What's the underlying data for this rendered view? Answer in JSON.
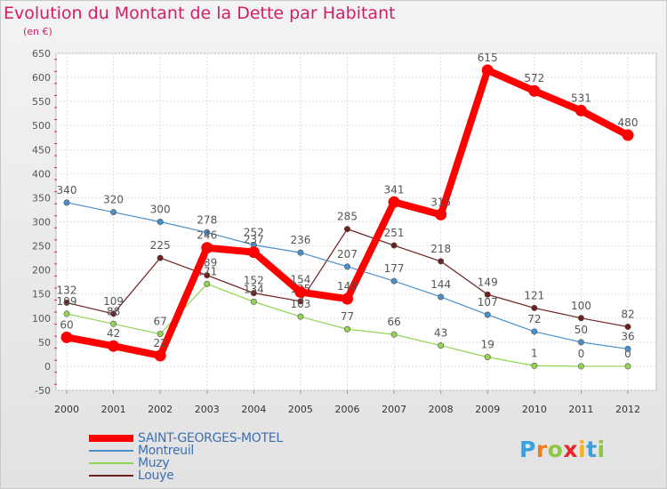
{
  "header": {
    "title": "Evolution du Montant de la Dette par Habitant",
    "unit": "(en €)"
  },
  "brand": {
    "letters": [
      "P",
      "r",
      "o",
      "x",
      "i",
      "t",
      "i"
    ],
    "colors": [
      "#3aa1da",
      "#f07c1c",
      "#8dc63f",
      "#e8262b",
      "#f5b21d",
      "#3aa1da",
      "#8dc63f"
    ]
  },
  "chart_data": {
    "type": "line",
    "x": [
      "2000",
      "2001",
      "2002",
      "2003",
      "2004",
      "2005",
      "2006",
      "2007",
      "2008",
      "2009",
      "2010",
      "2011",
      "2012"
    ],
    "ylim": [
      -50,
      650
    ],
    "yticks": [
      -50,
      0,
      50,
      100,
      150,
      200,
      250,
      300,
      350,
      400,
      450,
      500,
      550,
      600,
      650
    ],
    "grid": true,
    "legend_position": "bottom-left",
    "series": [
      {
        "name": "Louye",
        "color": "#6e1f1f",
        "values": [
          132,
          109,
          225,
          189,
          152,
          135,
          285,
          251,
          218,
          149,
          121,
          100,
          82
        ]
      },
      {
        "name": "Muzy",
        "color": "#8fd552",
        "values": [
          109,
          88,
          67,
          171,
          134,
          103,
          77,
          66,
          43,
          19,
          1,
          0,
          0
        ]
      },
      {
        "name": "Montreuil",
        "color": "#4b8fca",
        "values": [
          340,
          320,
          300,
          278,
          252,
          236,
          207,
          177,
          144,
          107,
          72,
          50,
          36
        ]
      },
      {
        "name": "SAINT-GEORGES-MOTEL",
        "color": "#ff0000",
        "values": [
          60,
          42,
          22,
          246,
          237,
          154,
          140,
          341,
          315,
          615,
          572,
          531,
          480
        ]
      }
    ]
  }
}
